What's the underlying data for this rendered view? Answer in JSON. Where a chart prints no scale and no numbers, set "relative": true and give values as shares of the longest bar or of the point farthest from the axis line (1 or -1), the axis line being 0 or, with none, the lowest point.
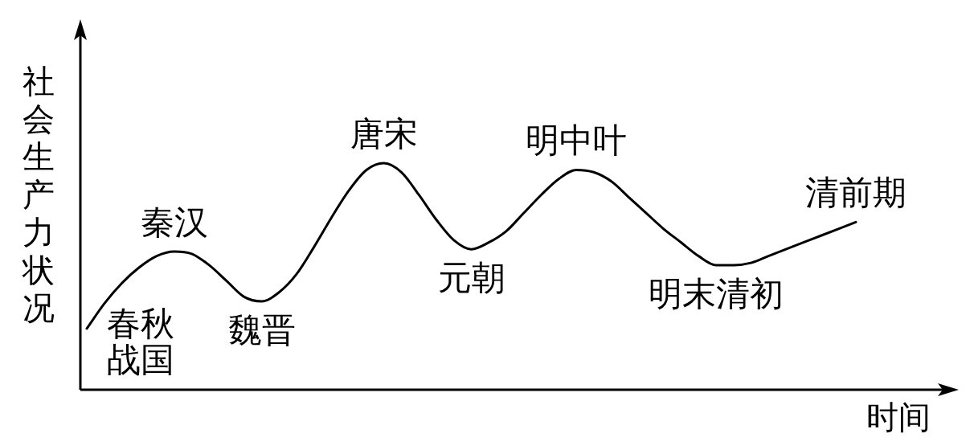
{
  "chart_data": {
    "type": "line",
    "relative": true,
    "xlabel": "时间",
    "ylabel": "社会生产力状况",
    "marker": "none",
    "categories": [
      null,
      null,
      null,
      null,
      null,
      null,
      null,
      null,
      null,
      null,
      null,
      null,
      null,
      null,
      null,
      null,
      null,
      null,
      null,
      null,
      null,
      null,
      null,
      null,
      null,
      null,
      null,
      null,
      null,
      null,
      null,
      null,
      null,
      null,
      null,
      null,
      null,
      null,
      null,
      null,
      null,
      null,
      null,
      null,
      null
    ],
    "series": [
      {
        "color": "#000000",
        "values": [
          0.27,
          0.38,
          0.47,
          0.54,
          0.59,
          0.61,
          0.6,
          0.55,
          0.48,
          0.41,
          0.39,
          0.43,
          0.51,
          0.63,
          0.76,
          0.88,
          0.97,
          1,
          0.96,
          0.86,
          0.75,
          0.66,
          0.62,
          0.65,
          0.7,
          0.78,
          0.86,
          0.93,
          0.97,
          0.96,
          0.92,
          0.85,
          0.78,
          0.71,
          0.65,
          0.59,
          0.55,
          0.55,
          0.56,
          0.59,
          0.62,
          0.65,
          0.68,
          0.71,
          0.74
        ]
      }
    ],
    "annotations": [
      "春秋战国",
      {
        "text": "秦汉",
        "y": 0.61
      },
      {
        "text": "魏晋",
        "y": 0.39
      },
      {
        "text": "唐宋",
        "y": 1
      },
      {
        "text": "元朝",
        "y": 0.62
      },
      {
        "text": "明中叶",
        "y": 0.97
      },
      {
        "text": "明末清初",
        "y": 0.55
      },
      {
        "text": "清前期",
        "y": 0.74
      }
    ]
  }
}
